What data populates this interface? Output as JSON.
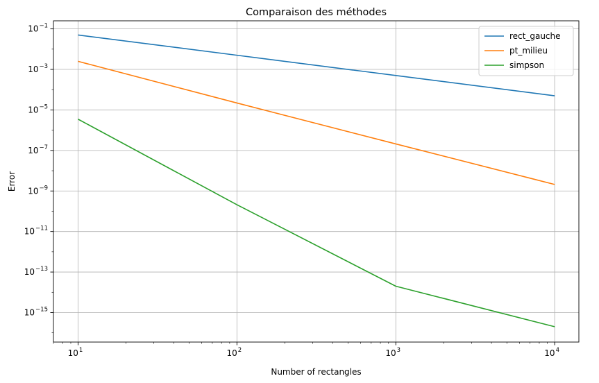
{
  "chart_data": {
    "type": "line",
    "title": "Comparaison des méthodes",
    "xlabel": "Number of rectangles",
    "ylabel": "Error",
    "xscale": "log",
    "yscale": "log",
    "xlim": [
      7.0,
      14200
    ],
    "ylim": [
      3.5e-17,
      0.25
    ],
    "grid": true,
    "legend_position": "top-right",
    "x": [
      10,
      100,
      1000,
      10000
    ],
    "x_ticks": [
      {
        "value": 10,
        "base": "10",
        "exp": "1"
      },
      {
        "value": 100,
        "base": "10",
        "exp": "2"
      },
      {
        "value": 1000,
        "base": "10",
        "exp": "3"
      },
      {
        "value": 10000,
        "base": "10",
        "exp": "4"
      }
    ],
    "y_ticks": [
      {
        "value": 0.1,
        "base": "10",
        "exp": "−1"
      },
      {
        "value": 0.001,
        "base": "10",
        "exp": "−3"
      },
      {
        "value": 1e-05,
        "base": "10",
        "exp": "−5"
      },
      {
        "value": 1e-07,
        "base": "10",
        "exp": "−7"
      },
      {
        "value": 1e-09,
        "base": "10",
        "exp": "−9"
      },
      {
        "value": 1e-11,
        "base": "10",
        "exp": "−11"
      },
      {
        "value": 1e-13,
        "base": "10",
        "exp": "−13"
      },
      {
        "value": 1e-15,
        "base": "10",
        "exp": "−15"
      }
    ],
    "series": [
      {
        "name": "rect_gauche",
        "color": "#1f77b4",
        "values": [
          0.05,
          0.005,
          0.0005,
          5e-05
        ]
      },
      {
        "name": "pt_milieu",
        "color": "#ff7f0e",
        "values": [
          0.0025,
          2.2e-05,
          2.1e-07,
          2.1e-09
        ]
      },
      {
        "name": "simpson",
        "color": "#2ca02c",
        "values": [
          3.5e-06,
          2.1e-10,
          2e-14,
          2e-16
        ]
      }
    ]
  }
}
